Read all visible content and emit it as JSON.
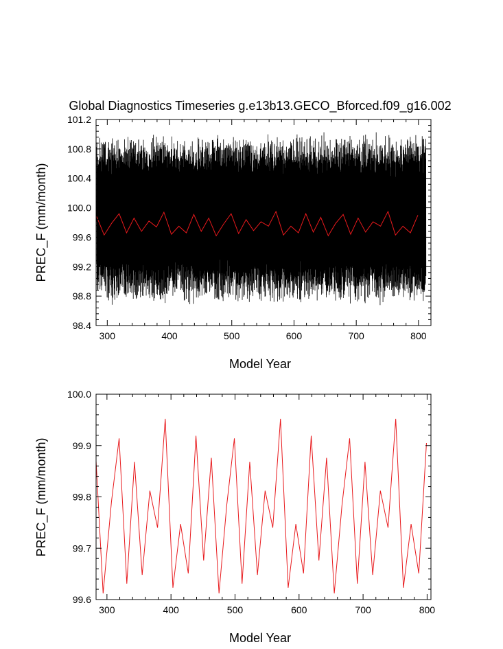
{
  "chart_data": [
    {
      "type": "line",
      "title": "Global Diagnostics Timeseries g.e13b13.GECO_Bforced.f09_g16.002",
      "xlabel": "Model Year",
      "ylabel": "PREC_F (mm/month)",
      "xlim": [
        282,
        820
      ],
      "ylim": [
        98.4,
        101.2
      ],
      "xticks": [
        300,
        400,
        500,
        600,
        700,
        800
      ],
      "yticks": [
        98.4,
        98.8,
        99.2,
        99.6,
        100.0,
        100.4,
        100.8,
        101.2
      ],
      "ytick_labels": [
        "98.4",
        "98.8",
        "99.2",
        "99.6",
        "100.0",
        "100.4",
        "100.8",
        "101.2"
      ],
      "grid": false,
      "colors": {
        "monthly": "#000000",
        "annual": "#e8191c"
      },
      "series": [
        {
          "style": "monthly",
          "x_start": 283,
          "x_end": 812,
          "points_per_year": 12,
          "range": [
            98.62,
            101.08
          ]
        },
        {
          "style": "annual",
          "x": [
            283,
            295,
            307,
            319,
            331,
            343,
            355,
            367,
            379,
            391,
            403,
            415,
            427,
            439,
            451,
            463,
            475,
            487,
            499,
            511,
            523,
            535,
            547,
            559,
            571,
            583,
            595,
            607,
            619,
            631,
            643,
            655,
            667,
            679,
            691,
            703,
            715,
            727,
            739,
            751,
            763,
            775,
            787,
            799
          ],
          "y": [
            99.88,
            99.63,
            99.79,
            99.92,
            99.66,
            99.86,
            99.68,
            99.82,
            99.74,
            99.94,
            99.64,
            99.75,
            99.66,
            99.91,
            99.68,
            99.86,
            99.62,
            99.78,
            99.92,
            99.65,
            99.84,
            99.69,
            99.81,
            99.75,
            99.95,
            99.63,
            99.75,
            99.66,
            99.92,
            99.67,
            99.87,
            99.62,
            99.79,
            99.91,
            99.64,
            99.86,
            99.67,
            99.81,
            99.75,
            99.95,
            99.63,
            99.75,
            99.66,
            99.9
          ]
        }
      ]
    },
    {
      "type": "line",
      "title": "",
      "xlabel": "Model Year",
      "ylabel": "PREC_F (mm/month)",
      "xlim": [
        283,
        806
      ],
      "ylim": [
        99.6,
        100.0
      ],
      "xticks": [
        300,
        400,
        500,
        600,
        700,
        800
      ],
      "yticks": [
        99.6,
        99.7,
        99.8,
        99.9,
        100.0
      ],
      "ytick_labels": [
        "99.6",
        "99.7",
        "99.8",
        "99.9",
        "100.0"
      ],
      "grid": false,
      "colors": {
        "annual": "#e8191c"
      },
      "series": [
        {
          "style": "annual",
          "x": [
            283,
            294,
            307,
            319,
            331,
            343,
            355,
            367,
            379,
            391,
            403,
            415,
            427,
            439,
            451,
            463,
            475,
            487,
            499,
            511,
            523,
            535,
            547,
            559,
            571,
            583,
            595,
            607,
            619,
            631,
            643,
            655,
            667,
            679,
            691,
            703,
            715,
            727,
            739,
            751,
            763,
            775,
            787,
            799
          ],
          "y": [
            99.87,
            99.612,
            99.79,
            99.914,
            99.631,
            99.868,
            99.648,
            99.812,
            99.74,
            99.952,
            99.623,
            99.747,
            99.651,
            99.919,
            99.676,
            99.876,
            99.612,
            99.783,
            99.914,
            99.631,
            99.868,
            99.648,
            99.812,
            99.74,
            99.952,
            99.623,
            99.747,
            99.651,
            99.919,
            99.676,
            99.876,
            99.612,
            99.783,
            99.914,
            99.631,
            99.868,
            99.648,
            99.812,
            99.74,
            99.952,
            99.623,
            99.747,
            99.651,
            99.905
          ]
        }
      ]
    }
  ]
}
